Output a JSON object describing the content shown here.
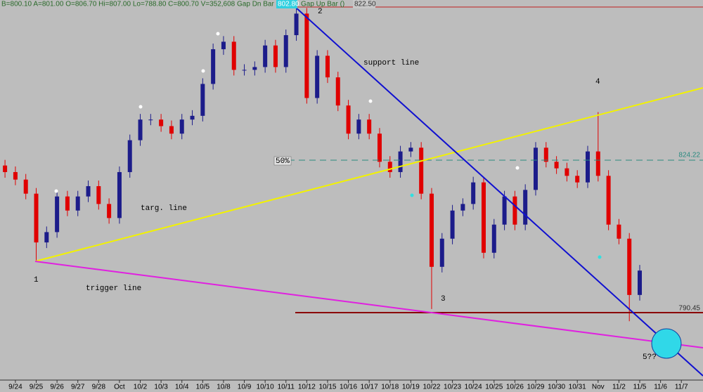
{
  "chart_data": {
    "type": "candlestick",
    "header_quote": "B=800.10  A=801.00  O=806.70  Hi=807.00  Lo=788.80  C=800.70  V=352,608  Gap Dn Bar ()",
    "header_price": "802.80",
    "header_gap_up": "Gap Up Bar ()",
    "header_high": "822.50",
    "level_mid": "824.22",
    "level_low": "790.45",
    "fib_label": "50%",
    "annotations": [
      "1",
      "2",
      "3",
      "4",
      "5??",
      "support line",
      "targ. line",
      "trigger line"
    ],
    "up_color": "#1c1c8a",
    "down_color": "#e00000",
    "xlim": [
      -0.74,
      33.04
    ],
    "ylim": [
      782.8,
      822.5
    ],
    "xticks": [
      {
        "value": 0,
        "label": "9/24"
      },
      {
        "value": 1,
        "label": "9/25"
      },
      {
        "value": 2,
        "label": "9/26"
      },
      {
        "value": 3,
        "label": "9/27"
      },
      {
        "value": 4,
        "label": "9/28"
      },
      {
        "value": 5,
        "label": "Oct"
      },
      {
        "value": 6,
        "label": "10/2"
      },
      {
        "value": 7,
        "label": "10/3"
      },
      {
        "value": 8,
        "label": "10/4"
      },
      {
        "value": 9,
        "label": "10/5"
      },
      {
        "value": 10,
        "label": "10/8"
      },
      {
        "value": 11,
        "label": "10/9"
      },
      {
        "value": 12,
        "label": "10/10"
      },
      {
        "value": 13,
        "label": "10/11"
      },
      {
        "value": 14,
        "label": "10/12"
      },
      {
        "value": 15,
        "label": "10/15"
      },
      {
        "value": 16,
        "label": "10/16"
      },
      {
        "value": 17,
        "label": "10/17"
      },
      {
        "value": 18,
        "label": "10/18"
      },
      {
        "value": 19,
        "label": "10/19"
      },
      {
        "value": 20,
        "label": "10/22"
      },
      {
        "value": 21,
        "label": "10/23"
      },
      {
        "value": 22,
        "label": "10/24"
      },
      {
        "value": 23,
        "label": "10/25"
      },
      {
        "value": 24,
        "label": "10/26"
      },
      {
        "value": 25,
        "label": "10/29"
      },
      {
        "value": 26,
        "label": "10/30"
      },
      {
        "value": 27,
        "label": "10/31"
      },
      {
        "value": 28,
        "label": "Nov"
      },
      {
        "value": 29,
        "label": "11/2"
      },
      {
        "value": 30,
        "label": "11/5"
      },
      {
        "value": 31,
        "label": "11/6"
      },
      {
        "value": 32,
        "label": "11/7"
      }
    ],
    "x": [
      -0.5,
      0,
      0.5,
      1,
      1.5,
      2,
      2.5,
      3,
      3.5,
      4,
      4.5,
      5,
      5.5,
      6,
      6.5,
      7,
      7.5,
      8,
      8.5,
      9,
      9.5,
      10,
      10.5,
      11,
      11.5,
      12,
      12.5,
      13,
      13.5,
      14,
      14.5,
      15,
      15.5,
      16,
      16.5,
      17,
      17.5,
      18,
      18.5,
      19,
      19.5,
      20,
      20.5,
      21,
      21.5,
      22,
      22.5,
      23,
      23.5,
      24,
      24.5,
      25,
      25.5,
      26,
      26.5,
      27,
      27.5,
      28,
      28.5,
      29,
      29.5,
      30
    ],
    "open": [
      805.6,
      804.9,
      804.1,
      802.6,
      797.4,
      798.5,
      802.3,
      800.8,
      802.3,
      803.4,
      801.5,
      800.0,
      804.9,
      808.3,
      810.5,
      810.5,
      809.8,
      809.0,
      810.5,
      810.9,
      814.3,
      818.0,
      818.8,
      815.8,
      815.8,
      816.1,
      818.4,
      816.1,
      819.5,
      821.8,
      812.8,
      817.3,
      815.0,
      812.0,
      809.0,
      810.5,
      809.0,
      806.0,
      804.9,
      807.1,
      807.5,
      802.6,
      794.8,
      797.8,
      800.8,
      801.5,
      803.8,
      796.3,
      799.3,
      802.3,
      799.3,
      803.0,
      807.5,
      806.0,
      805.3,
      804.5,
      803.8,
      807.1,
      804.5,
      799.3,
      797.8,
      791.8
    ],
    "high": [
      806.2,
      805.5,
      804.7,
      803.2,
      799.1,
      802.9,
      802.9,
      802.9,
      804.0,
      804.0,
      802.1,
      805.5,
      808.9,
      811.1,
      811.1,
      811.1,
      810.4,
      811.1,
      811.5,
      814.9,
      818.6,
      819.4,
      819.4,
      816.4,
      816.7,
      819.0,
      819.0,
      820.1,
      822.5,
      822.4,
      817.9,
      817.9,
      815.6,
      812.6,
      811.1,
      811.1,
      809.6,
      806.6,
      807.7,
      808.1,
      808.1,
      803.2,
      798.4,
      801.4,
      802.1,
      804.4,
      804.4,
      799.9,
      802.9,
      802.9,
      803.6,
      808.1,
      808.1,
      806.6,
      805.9,
      805.1,
      807.7,
      811.3,
      805.1,
      799.9,
      798.4,
      795.0
    ],
    "low": [
      804.3,
      803.5,
      802.0,
      795.4,
      796.8,
      797.9,
      800.2,
      800.2,
      801.7,
      800.9,
      799.4,
      799.4,
      804.3,
      807.7,
      809.9,
      809.2,
      808.4,
      808.4,
      809.9,
      810.3,
      813.7,
      817.4,
      815.2,
      815.2,
      815.2,
      815.5,
      815.5,
      815.5,
      818.9,
      812.2,
      812.2,
      814.4,
      811.4,
      808.4,
      808.4,
      808.4,
      805.4,
      804.3,
      804.3,
      806.5,
      802.0,
      790.3,
      794.2,
      797.2,
      800.2,
      800.9,
      795.7,
      795.7,
      798.7,
      798.7,
      798.7,
      802.4,
      805.4,
      804.7,
      803.9,
      803.2,
      803.2,
      803.9,
      798.7,
      797.2,
      789.0,
      791.2
    ],
    "close": [
      804.9,
      804.1,
      802.6,
      797.4,
      798.5,
      802.3,
      800.8,
      802.3,
      803.4,
      801.5,
      800.0,
      804.9,
      808.3,
      810.5,
      810.5,
      809.8,
      809.0,
      810.5,
      810.9,
      814.3,
      818.0,
      818.8,
      815.8,
      815.8,
      816.1,
      818.4,
      816.1,
      819.5,
      821.8,
      812.8,
      817.3,
      815.0,
      812.0,
      809.0,
      810.5,
      809.0,
      806.0,
      804.9,
      807.1,
      807.5,
      802.6,
      794.8,
      797.8,
      800.8,
      801.5,
      803.8,
      796.3,
      799.3,
      802.3,
      799.3,
      803.0,
      807.5,
      806.0,
      805.3,
      804.5,
      803.8,
      807.1,
      804.5,
      799.3,
      797.8,
      791.8,
      794.4
    ]
  }
}
